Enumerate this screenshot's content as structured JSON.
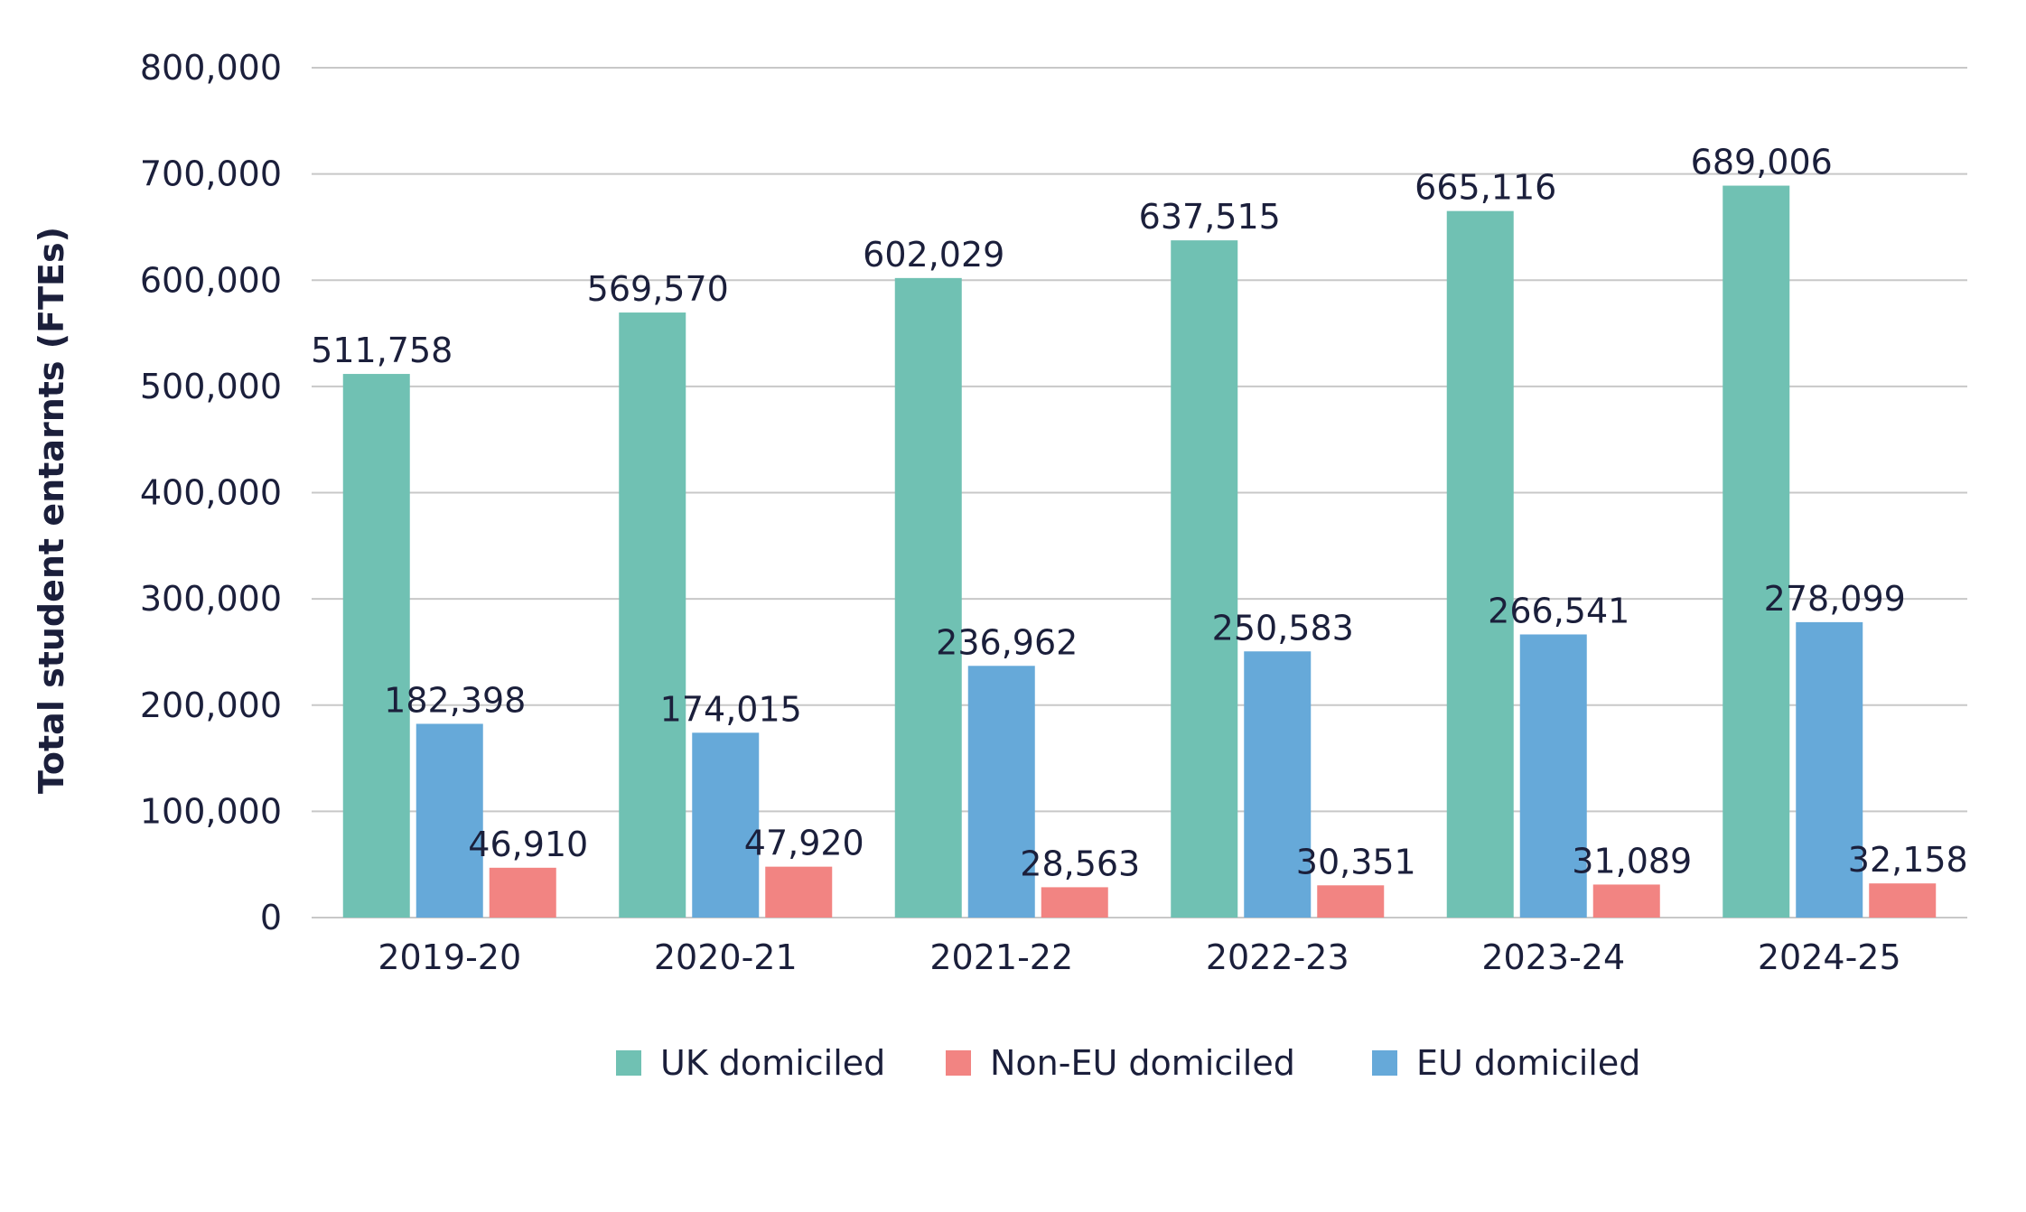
{
  "chart_data": {
    "type": "bar",
    "title": "",
    "xlabel": "",
    "ylabel": "Total student entarnts (FTEs)",
    "ylim": [
      0,
      800000
    ],
    "yticks": [
      0,
      100000,
      200000,
      300000,
      400000,
      500000,
      600000,
      700000,
      800000
    ],
    "ytick_labels": [
      "0",
      "100,000",
      "200,000",
      "300,000",
      "400,000",
      "500,000",
      "600,000",
      "700,000",
      "800,000"
    ],
    "grid": true,
    "legend_position": "bottom",
    "categories": [
      "2019-20",
      "2020-21",
      "2021-22",
      "2022-23",
      "2023-24",
      "2024-25"
    ],
    "series": [
      {
        "name": "UK domiciled",
        "color": "#70c1b3",
        "values": [
          511758,
          569570,
          602029,
          637515,
          665116,
          689006
        ],
        "labels": [
          "511,758",
          "569,570",
          "602,029",
          "637,515",
          "665,116",
          "689,006"
        ]
      },
      {
        "name": "EU domiciled",
        "color": "#66a9d9",
        "values": [
          182398,
          174015,
          236962,
          250583,
          266541,
          278099
        ],
        "labels": [
          "182,398",
          "174,015",
          "236,962",
          "250,583",
          "266,541",
          "278,099"
        ]
      },
      {
        "name": "Non-EU domiciled",
        "color": "#f28482",
        "values": [
          46910,
          47920,
          28563,
          30351,
          31089,
          32158
        ],
        "labels": [
          "46,910",
          "47,920",
          "28,563",
          "30,351",
          "31,089",
          "32,158"
        ]
      }
    ],
    "legend_order": [
      "UK domiciled",
      "Non-EU domiciled",
      "EU domiciled"
    ]
  }
}
